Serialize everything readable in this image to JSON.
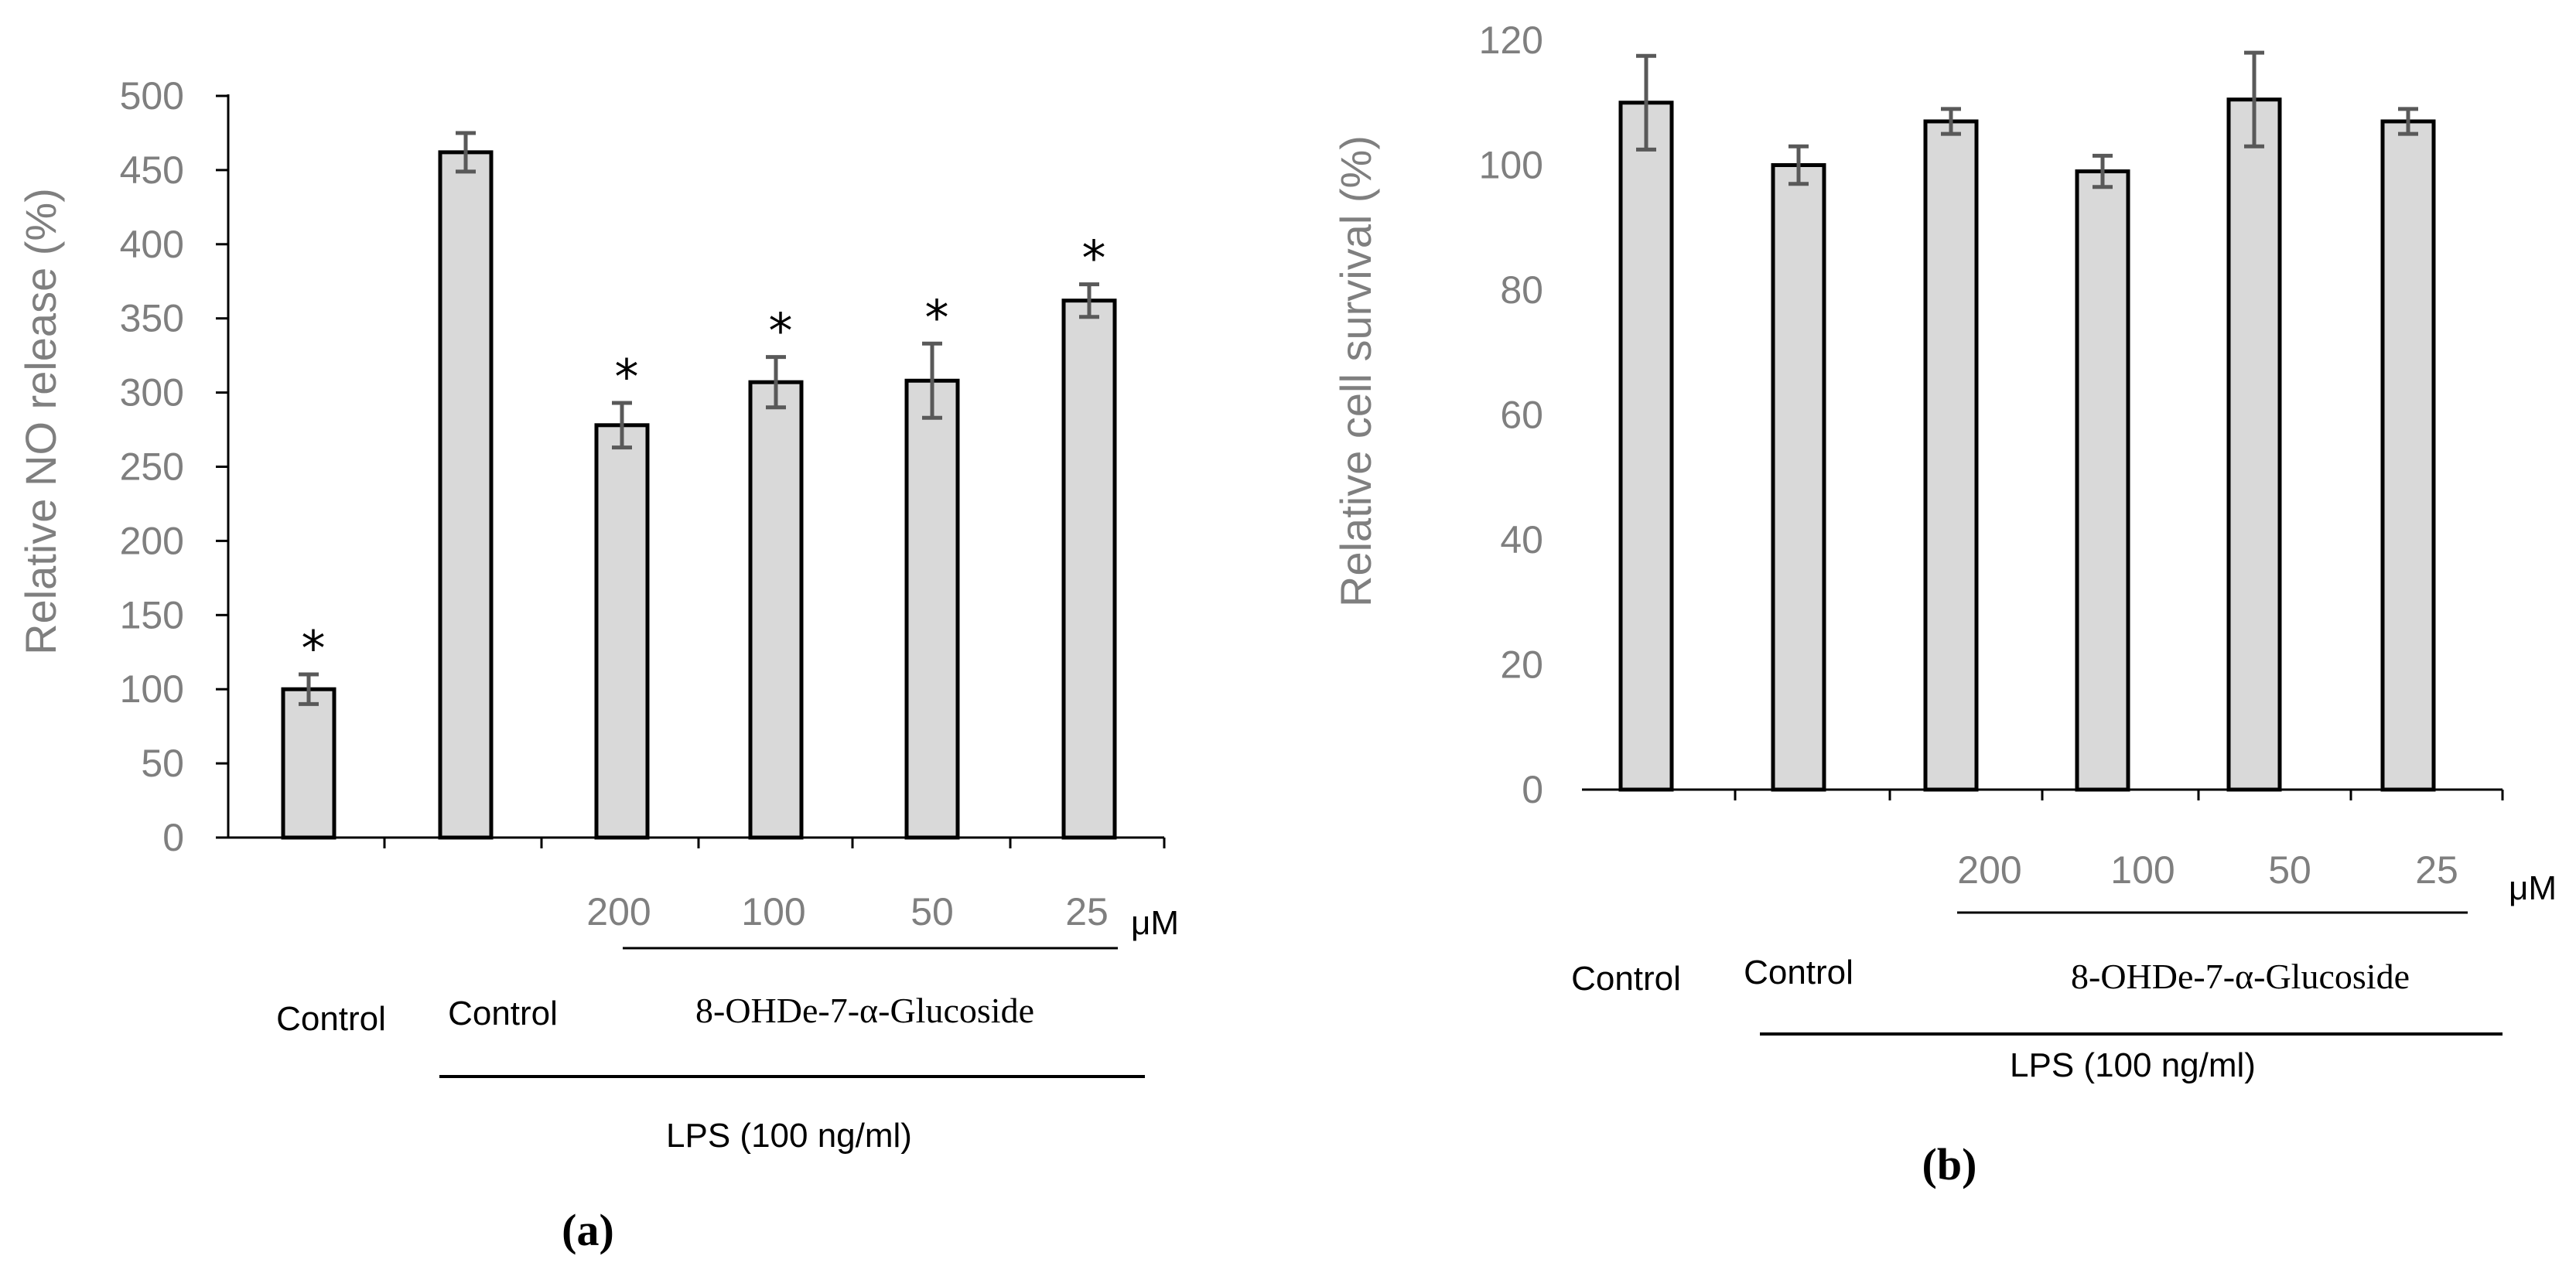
{
  "chart_data": [
    {
      "type": "bar",
      "panel_label": "(a)",
      "ylabel": "Relative NO release (%)",
      "ylim": [
        0,
        500
      ],
      "yticks": [
        "0",
        "50",
        "100",
        "150",
        "200",
        "250",
        "300",
        "350",
        "400",
        "450",
        "500"
      ],
      "values": [
        100,
        462,
        278,
        307,
        308,
        362
      ],
      "errors": [
        10,
        13,
        15,
        17,
        25,
        11
      ],
      "significance": [
        "*",
        "",
        "*",
        "*",
        "*",
        "*"
      ],
      "concentration_labels": [
        "200",
        "100",
        "50",
        "25"
      ],
      "unit_label": "μM",
      "group_labels": {
        "control_1": "Control",
        "control_2": "Control",
        "compound": "8-OHDe-7-α-Glucoside",
        "treatment": "LPS (100 ng/ml)"
      }
    },
    {
      "type": "bar",
      "panel_label": "(b)",
      "ylabel": "Relative cell survival (%)",
      "ylim": [
        0,
        120
      ],
      "yticks": [
        "0",
        "20",
        "40",
        "60",
        "80",
        "100",
        "120"
      ],
      "values": [
        110,
        100,
        107,
        99,
        110.5,
        107
      ],
      "errors": [
        7.5,
        3,
        2,
        2.5,
        7.5,
        2
      ],
      "significance": [
        "",
        "",
        "",
        "",
        "",
        ""
      ],
      "concentration_labels": [
        "200",
        "100",
        "50",
        "25"
      ],
      "unit_label": "μM",
      "group_labels": {
        "control_1": "Control",
        "control_2": "Control",
        "compound": "8-OHDe-7-α-Glucoside",
        "treatment": "LPS (100 ng/ml)"
      }
    }
  ],
  "colors": {
    "bar_fill": "#d9d9d9",
    "bar_stroke": "#000000",
    "error": "#595959",
    "axis": "#000000",
    "tick_text": "#7f7f7f"
  }
}
